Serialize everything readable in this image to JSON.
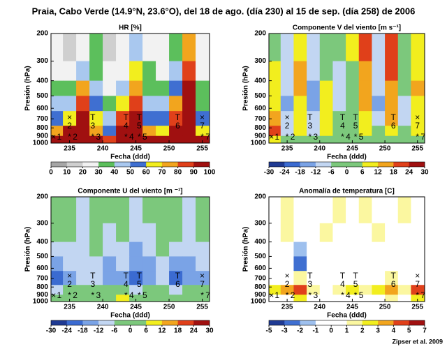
{
  "title": "Praia, Cabo Verde (14.9°N, 23.6°O), del 18 de ago. (día 230) al 15 de sep. (día 258) de 2006",
  "footer": "Zipser et al. 2009",
  "wave_markers": [
    {
      "label": "1",
      "x": 232.6,
      "top": null,
      "bottom": "×"
    },
    {
      "label": "2",
      "x": 235,
      "top": "×",
      "bottom": "*"
    },
    {
      "label": "3",
      "x": 238.5,
      "top": "T",
      "bottom": "*"
    },
    {
      "label": "4",
      "x": 243.5,
      "top": "T",
      "bottom": "*"
    },
    {
      "label": "5",
      "x": 245.5,
      "top": "T",
      "bottom": "*"
    },
    {
      "label": "6",
      "x": 251.3,
      "top": "T",
      "bottom": null
    },
    {
      "label": "7",
      "x": 255,
      "top": "×",
      "bottom": "*"
    }
  ],
  "chart_data": [
    {
      "type": "heatmap",
      "title": "HR [%]",
      "xlabel": "Fecha (ddd)",
      "ylabel": "Presión (hPa)",
      "xlim": [
        232.2,
        256.1
      ],
      "xticks": [
        235,
        240,
        245,
        250,
        255
      ],
      "ylim": [
        200,
        1000
      ],
      "yscale": "log",
      "y_inverted": true,
      "yticks": [
        200,
        300,
        400,
        500,
        600,
        700,
        800,
        900,
        1000
      ],
      "x": [
        233,
        235,
        237,
        239,
        241,
        243,
        245,
        247,
        249,
        251,
        253,
        255
      ],
      "y": [
        250,
        350,
        450,
        550,
        700,
        850,
        950
      ],
      "z": [
        [
          20,
          15,
          25,
          35,
          15,
          20,
          45,
          25,
          20,
          35,
          70,
          20
        ],
        [
          25,
          20,
          40,
          30,
          20,
          25,
          60,
          30,
          25,
          40,
          85,
          25
        ],
        [
          35,
          30,
          70,
          45,
          25,
          40,
          75,
          35,
          30,
          55,
          90,
          30
        ],
        [
          45,
          40,
          85,
          55,
          35,
          65,
          85,
          45,
          40,
          70,
          90,
          35
        ],
        [
          55,
          60,
          90,
          60,
          45,
          80,
          90,
          55,
          50,
          85,
          95,
          50
        ],
        [
          75,
          90,
          95,
          70,
          55,
          90,
          95,
          75,
          65,
          90,
          95,
          60
        ],
        [
          95,
          95,
          95,
          90,
          85,
          95,
          95,
          95,
          90,
          95,
          95,
          90
        ]
      ],
      "colorbar": {
        "ticks": [
          0,
          10,
          20,
          30,
          40,
          50,
          60,
          70,
          80,
          90,
          100
        ],
        "colors": [
          "#a6a6a6",
          "#cfcfcf",
          "#f2f2f2",
          "#5cbf5c",
          "#a9c8ef",
          "#3f6fd1",
          "#f2ee1e",
          "#f2a51e",
          "#e0401a",
          "#a01010"
        ]
      }
    },
    {
      "type": "heatmap",
      "title": "Componente V del viento [m s⁻¹]",
      "xlabel": "Fecha (ddd)",
      "ylabel": "Presión (hPa)",
      "xlim": [
        232.2,
        256.1
      ],
      "xticks": [
        235,
        240,
        245,
        250,
        255
      ],
      "ylim": [
        200,
        1000
      ],
      "yscale": "log",
      "y_inverted": true,
      "yticks": [
        200,
        300,
        400,
        500,
        600,
        700,
        800,
        900,
        1000
      ],
      "x": [
        233,
        235,
        237,
        239,
        241,
        243,
        245,
        247,
        249,
        251,
        253,
        255
      ],
      "y": [
        250,
        350,
        450,
        550,
        700,
        850,
        950
      ],
      "z": [
        [
          4,
          -8,
          10,
          -10,
          2,
          -6,
          6,
          18,
          -8,
          20,
          -2,
          8
        ],
        [
          6,
          -10,
          14,
          -12,
          4,
          -8,
          4,
          16,
          -10,
          18,
          -4,
          10
        ],
        [
          8,
          -12,
          12,
          -14,
          6,
          -10,
          2,
          14,
          -12,
          16,
          -6,
          12
        ],
        [
          10,
          -14,
          10,
          -16,
          8,
          -8,
          0,
          12,
          -14,
          14,
          -8,
          10
        ],
        [
          14,
          -12,
          8,
          -12,
          10,
          -6,
          -2,
          10,
          -10,
          12,
          -10,
          8
        ],
        [
          18,
          -8,
          6,
          -8,
          8,
          -4,
          -4,
          8,
          -6,
          10,
          -6,
          6
        ],
        [
          6,
          -4,
          2,
          -4,
          2,
          -2,
          -2,
          4,
          -4,
          4,
          -2,
          2
        ]
      ],
      "colorbar": {
        "ticks": [
          -30,
          -24,
          -18,
          -12,
          -6,
          0,
          6,
          12,
          18,
          24,
          30
        ],
        "colors": [
          "#1f3a93",
          "#3b6bd1",
          "#7aa3e6",
          "#c2d6f2",
          "#7cc87c",
          "#7cc87c",
          "#f2ee1e",
          "#f2a51e",
          "#e0401a",
          "#a01010"
        ]
      }
    },
    {
      "type": "heatmap",
      "title": "Componente U del viento [m ⁻¹]",
      "xlabel": "Fecha (ddd)",
      "ylabel": "Presión (hPa)",
      "xlim": [
        232.2,
        256.1
      ],
      "xticks": [
        235,
        240,
        245,
        250,
        255
      ],
      "ylim": [
        200,
        1000
      ],
      "yscale": "log",
      "y_inverted": true,
      "yticks": [
        200,
        300,
        400,
        500,
        600,
        700,
        800,
        900,
        1000
      ],
      "x": [
        233,
        235,
        237,
        239,
        241,
        243,
        245,
        247,
        249,
        251,
        253,
        255
      ],
      "y": [
        250,
        350,
        450,
        550,
        700,
        850,
        950
      ],
      "z": [
        [
          -4,
          -2,
          -8,
          -3,
          -4,
          -2,
          -8,
          -4,
          -3,
          -5,
          -8,
          -4
        ],
        [
          -6,
          -4,
          -10,
          -4,
          -8,
          -4,
          -10,
          -8,
          -4,
          -6,
          -10,
          -6
        ],
        [
          -10,
          -8,
          -12,
          -6,
          -10,
          -8,
          -14,
          -10,
          -6,
          -10,
          -12,
          -8
        ],
        [
          -16,
          -12,
          -10,
          -8,
          -14,
          -12,
          -18,
          -14,
          -10,
          -16,
          -14,
          -10
        ],
        [
          -20,
          -16,
          -8,
          -10,
          -18,
          -16,
          -20,
          -18,
          -12,
          -20,
          -16,
          -14
        ],
        [
          -8,
          -6,
          2,
          -4,
          -6,
          4,
          -8,
          -6,
          -4,
          -8,
          -4,
          -6
        ],
        [
          -2,
          -4,
          4,
          -2,
          -2,
          6,
          -4,
          -2,
          -2,
          -4,
          -2,
          -2
        ]
      ],
      "colorbar": {
        "ticks": [
          -30,
          -24,
          -18,
          -12,
          -6,
          0,
          6,
          12,
          18,
          24,
          30
        ],
        "colors": [
          "#1f3a93",
          "#3b6bd1",
          "#7aa3e6",
          "#c2d6f2",
          "#7cc87c",
          "#7cc87c",
          "#f2ee1e",
          "#f2a51e",
          "#e0401a",
          "#a01010"
        ]
      }
    },
    {
      "type": "heatmap",
      "title": "Anomalía de temperatura [C]",
      "xlabel": "Fecha (ddd)",
      "ylabel": "Presión (hPa)",
      "xlim": [
        232.2,
        256.1
      ],
      "xticks": [
        235,
        240,
        245,
        250,
        255
      ],
      "ylim": [
        200,
        1000
      ],
      "yscale": "log",
      "y_inverted": true,
      "yticks": [
        200,
        300,
        400,
        500,
        600,
        700,
        800,
        900,
        1000
      ],
      "x": [
        233,
        235,
        237,
        239,
        241,
        243,
        245,
        247,
        249,
        251,
        253,
        255
      ],
      "y": [
        250,
        350,
        450,
        550,
        700,
        850,
        950
      ],
      "z": [
        [
          0.5,
          1.5,
          0.5,
          -0.5,
          0.5,
          1.5,
          0.5,
          1.5,
          0.5,
          0.5,
          1.5,
          0.5
        ],
        [
          0.5,
          1.5,
          0.5,
          -0.5,
          1.5,
          0.5,
          0.5,
          0.5,
          1.5,
          0.5,
          0.5,
          -0.5
        ],
        [
          -0.5,
          0.5,
          -1.5,
          0.5,
          0.5,
          -0.5,
          0.5,
          0.5,
          0.5,
          -0.5,
          0.5,
          0.5
        ],
        [
          0.5,
          -0.5,
          -2.5,
          0.5,
          -0.5,
          0.5,
          -0.5,
          0.5,
          -0.5,
          0.5,
          -0.5,
          0.5
        ],
        [
          0.5,
          0.5,
          1.5,
          -0.5,
          0.5,
          0.5,
          0.5,
          -0.5,
          0.5,
          1.5,
          0.5,
          -0.5
        ],
        [
          2.5,
          3.5,
          4.5,
          1.5,
          0.5,
          1.5,
          2.5,
          1.5,
          2.5,
          3.5,
          1.5,
          4.5
        ],
        [
          -0.5,
          0.5,
          2.5,
          0.5,
          -0.5,
          0.5,
          0.5,
          -0.5,
          0.5,
          1.5,
          0.5,
          2.5
        ]
      ],
      "colorbar": {
        "ticks": [
          -5,
          -3,
          -2,
          -1,
          0,
          1,
          2,
          3,
          4,
          5,
          7
        ],
        "colors": [
          "#1f3a93",
          "#3f6fd1",
          "#9ec0ee",
          "#ffffff",
          "#ffffff",
          "#fbf7a0",
          "#f2ee1e",
          "#f2a51e",
          "#e0401a",
          "#a01010"
        ]
      }
    }
  ]
}
